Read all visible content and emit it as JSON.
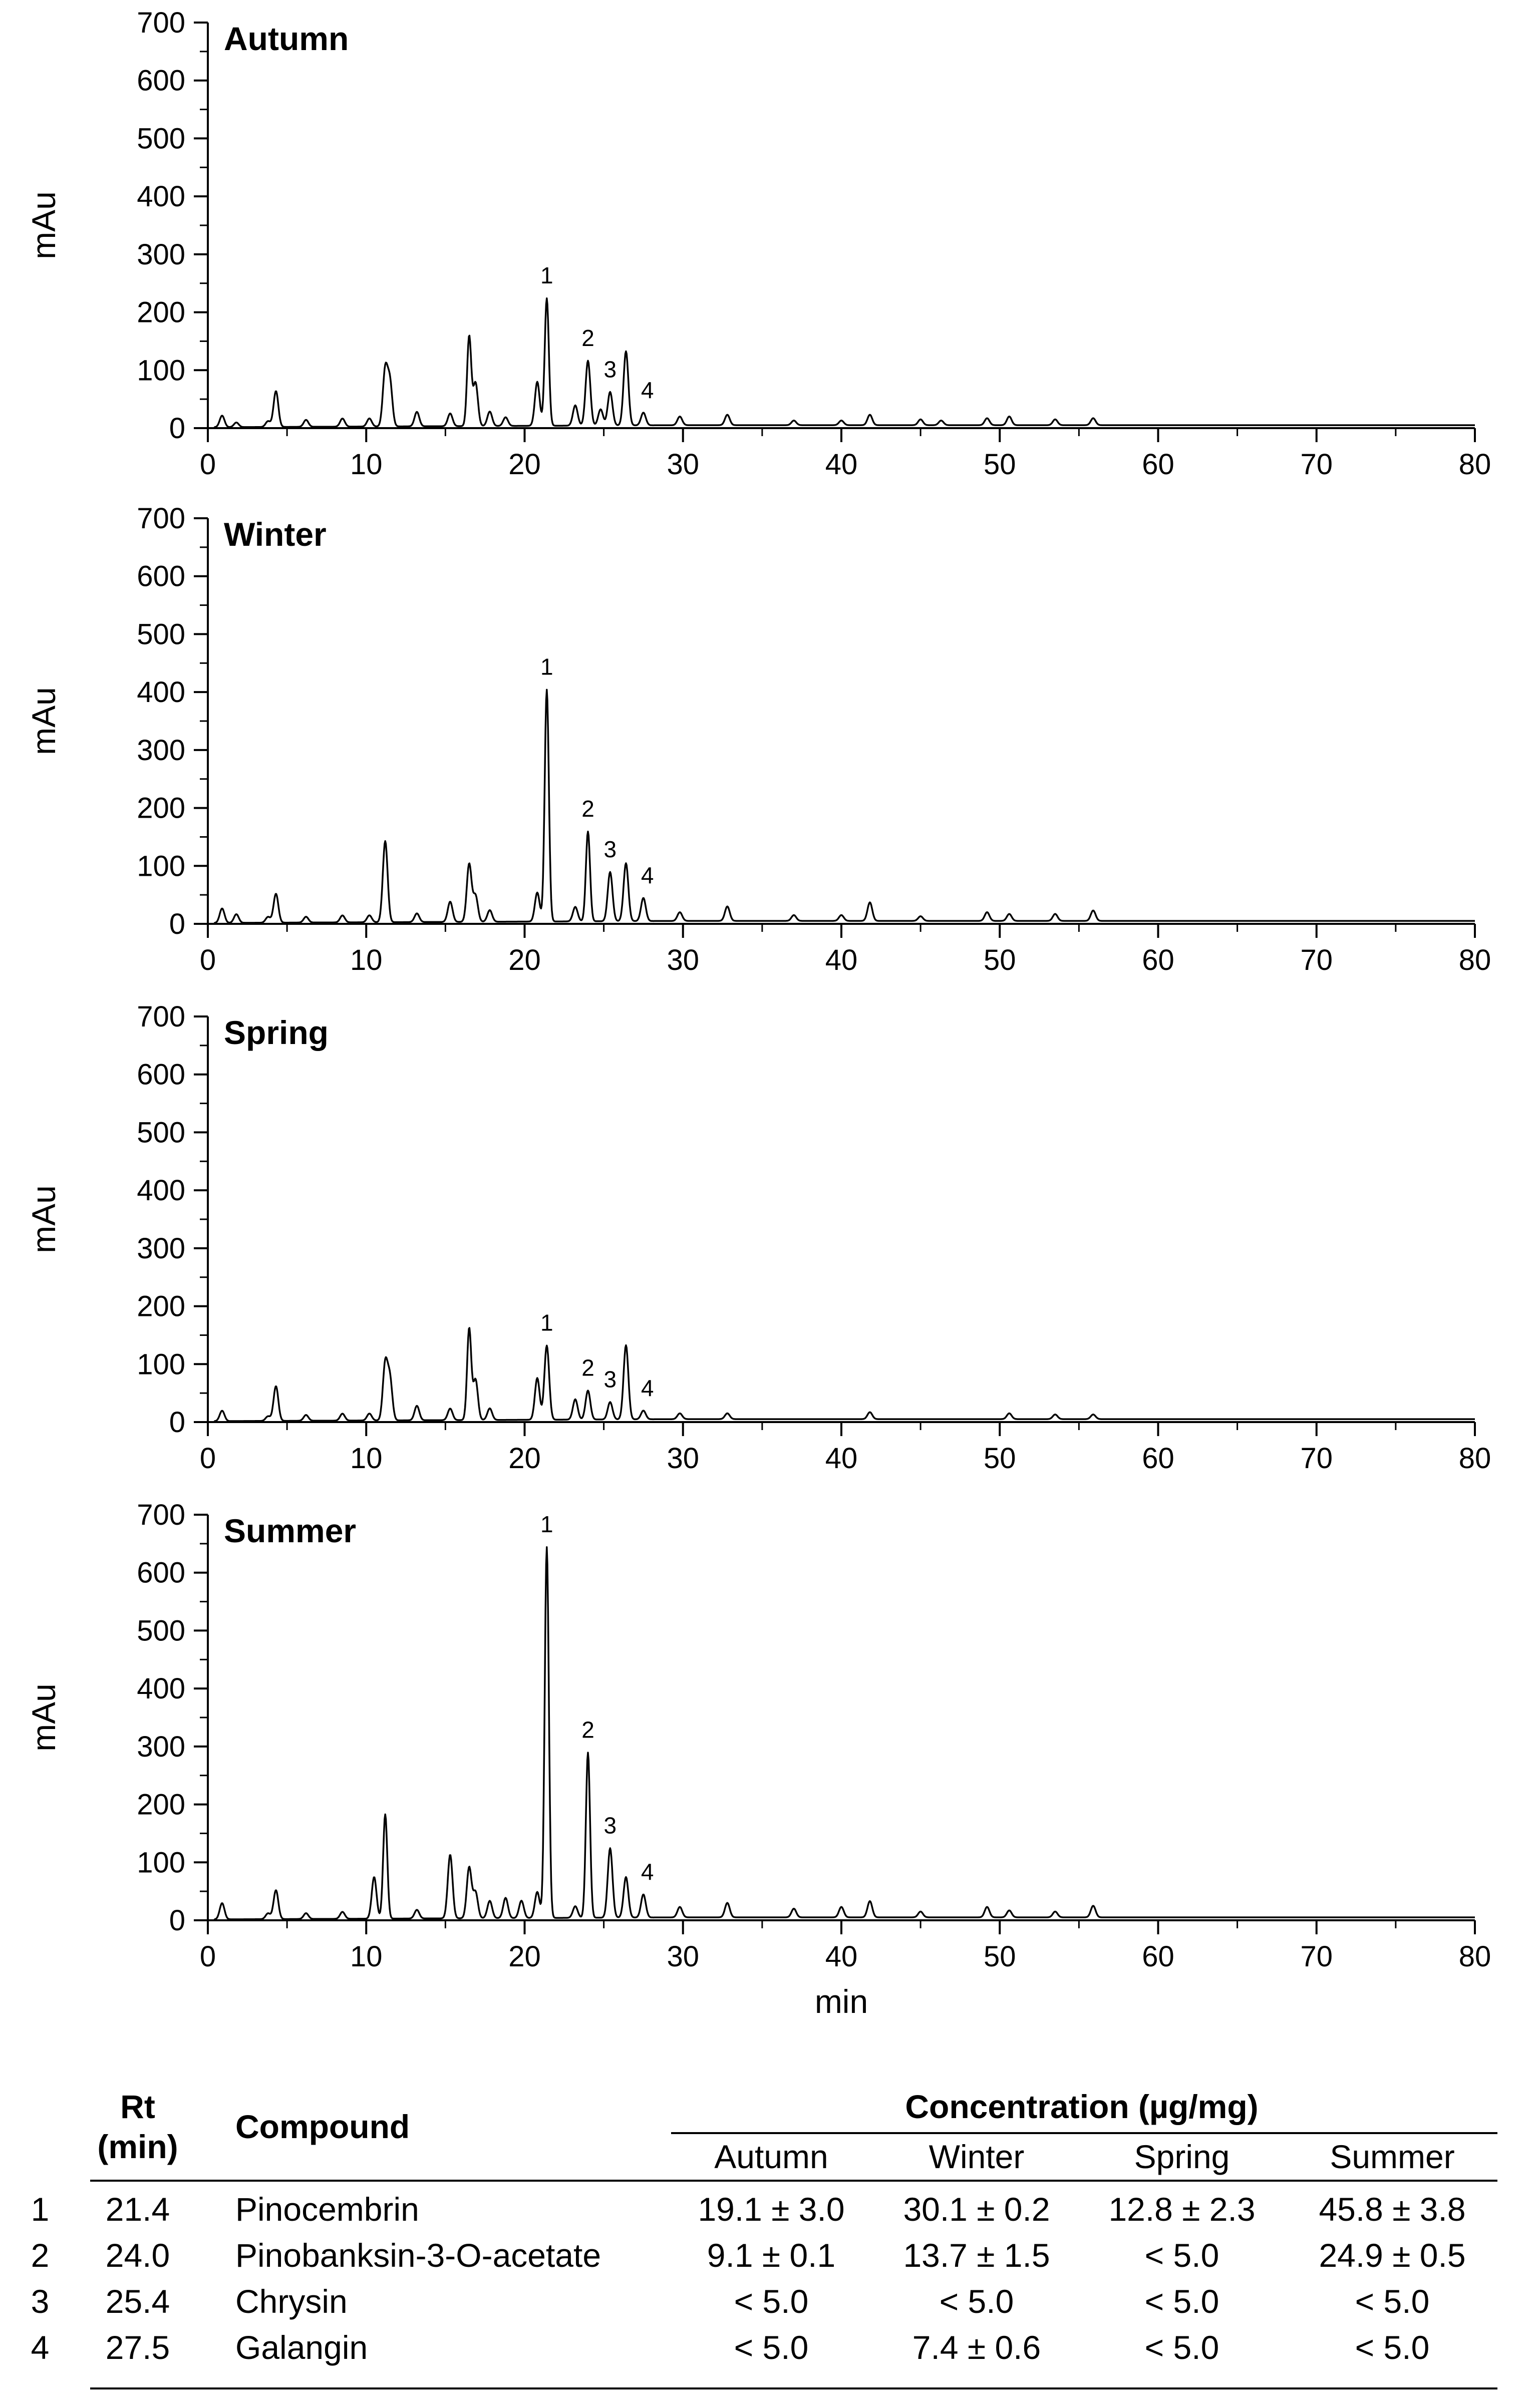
{
  "chart_data": [
    {
      "type": "line",
      "title": "Autumn",
      "xlabel": "",
      "ylabel": "mAu",
      "xlim": [
        0,
        80
      ],
      "ylim": [
        0,
        700
      ],
      "xticks": [
        "0",
        "10",
        "20",
        "30",
        "40",
        "50",
        "60",
        "70",
        "80"
      ],
      "yticks": [
        "0",
        "100",
        "200",
        "300",
        "400",
        "500",
        "600",
        "700"
      ],
      "peaks": [
        [
          0.9,
          20
        ],
        [
          1.8,
          8
        ],
        [
          3.8,
          10
        ],
        [
          4.3,
          62
        ],
        [
          6.2,
          12
        ],
        [
          8.5,
          14
        ],
        [
          10.2,
          14
        ],
        [
          11.2,
          97
        ],
        [
          11.5,
          75
        ],
        [
          13.2,
          25
        ],
        [
          15.3,
          22
        ],
        [
          16.5,
          155
        ],
        [
          16.9,
          75
        ],
        [
          17.8,
          25
        ],
        [
          18.8,
          15
        ],
        [
          20.8,
          76
        ],
        [
          21.4,
          220
        ],
        [
          23.2,
          35
        ],
        [
          24.0,
          112
        ],
        [
          24.8,
          28
        ],
        [
          25.4,
          58
        ],
        [
          26.4,
          128
        ],
        [
          27.5,
          22
        ],
        [
          29.8,
          15
        ],
        [
          32.8,
          18
        ],
        [
          37.0,
          8
        ],
        [
          40.0,
          8
        ],
        [
          41.8,
          18
        ],
        [
          45.0,
          10
        ],
        [
          46.3,
          8
        ],
        [
          49.2,
          12
        ],
        [
          50.6,
          15
        ],
        [
          53.5,
          10
        ],
        [
          55.9,
          12
        ]
      ],
      "peak_labels": [
        {
          "label": "1",
          "x": 21.4
        },
        {
          "label": "2",
          "x": 24.0
        },
        {
          "label": "3",
          "x": 25.4
        },
        {
          "label": "4",
          "x": 27.5
        }
      ]
    },
    {
      "type": "line",
      "title": "Winter",
      "xlabel": "",
      "ylabel": "mAu",
      "xlim": [
        0,
        80
      ],
      "ylim": [
        0,
        700
      ],
      "xticks": [
        "0",
        "10",
        "20",
        "30",
        "40",
        "50",
        "60",
        "70",
        "80"
      ],
      "yticks": [
        "0",
        "100",
        "200",
        "300",
        "400",
        "500",
        "600",
        "700"
      ],
      "peaks": [
        [
          0.9,
          25
        ],
        [
          1.8,
          15
        ],
        [
          3.8,
          10
        ],
        [
          4.3,
          50
        ],
        [
          6.2,
          10
        ],
        [
          8.5,
          12
        ],
        [
          10.2,
          12
        ],
        [
          11.2,
          140
        ],
        [
          13.2,
          15
        ],
        [
          15.3,
          35
        ],
        [
          16.5,
          100
        ],
        [
          16.9,
          45
        ],
        [
          17.8,
          20
        ],
        [
          20.8,
          50
        ],
        [
          21.4,
          400
        ],
        [
          23.2,
          25
        ],
        [
          24.0,
          155
        ],
        [
          25.4,
          85
        ],
        [
          26.4,
          100
        ],
        [
          27.5,
          40
        ],
        [
          29.8,
          15
        ],
        [
          32.8,
          25
        ],
        [
          37.0,
          10
        ],
        [
          40.0,
          10
        ],
        [
          41.8,
          32
        ],
        [
          45.0,
          8
        ],
        [
          49.2,
          15
        ],
        [
          50.6,
          12
        ],
        [
          53.5,
          12
        ],
        [
          55.9,
          18
        ]
      ],
      "peak_labels": [
        {
          "label": "1",
          "x": 21.4
        },
        {
          "label": "2",
          "x": 24.0
        },
        {
          "label": "3",
          "x": 25.4
        },
        {
          "label": "4",
          "x": 27.5
        }
      ]
    },
    {
      "type": "line",
      "title": "Spring",
      "xlabel": "",
      "ylabel": "mAu",
      "xlim": [
        0,
        80
      ],
      "ylim": [
        0,
        700
      ],
      "xticks": [
        "0",
        "10",
        "20",
        "30",
        "40",
        "50",
        "60",
        "70",
        "80"
      ],
      "yticks": [
        "0",
        "100",
        "200",
        "300",
        "400",
        "500",
        "600",
        "700"
      ],
      "peaks": [
        [
          0.9,
          18
        ],
        [
          3.8,
          8
        ],
        [
          4.3,
          60
        ],
        [
          6.2,
          10
        ],
        [
          8.5,
          12
        ],
        [
          10.2,
          12
        ],
        [
          11.2,
          97
        ],
        [
          11.5,
          70
        ],
        [
          13.2,
          25
        ],
        [
          15.3,
          20
        ],
        [
          16.5,
          158
        ],
        [
          16.9,
          70
        ],
        [
          17.8,
          20
        ],
        [
          20.8,
          72
        ],
        [
          21.4,
          128
        ],
        [
          23.2,
          35
        ],
        [
          24.0,
          50
        ],
        [
          25.4,
          30
        ],
        [
          26.4,
          128
        ],
        [
          27.5,
          15
        ],
        [
          29.8,
          10
        ],
        [
          32.8,
          10
        ],
        [
          41.8,
          12
        ],
        [
          50.6,
          10
        ],
        [
          53.5,
          8
        ],
        [
          55.9,
          8
        ]
      ],
      "peak_labels": [
        {
          "label": "1",
          "x": 21.4
        },
        {
          "label": "2",
          "x": 24.0
        },
        {
          "label": "3",
          "x": 25.4
        },
        {
          "label": "4",
          "x": 27.5
        }
      ]
    },
    {
      "type": "line",
      "title": "Summer",
      "xlabel": "min",
      "ylabel": "mAu",
      "xlim": [
        0,
        80
      ],
      "ylim": [
        0,
        700
      ],
      "xticks": [
        "0",
        "10",
        "20",
        "30",
        "40",
        "50",
        "60",
        "70",
        "80"
      ],
      "yticks": [
        "0",
        "100",
        "200",
        "300",
        "400",
        "500",
        "600",
        "700"
      ],
      "peaks": [
        [
          0.9,
          28
        ],
        [
          3.8,
          10
        ],
        [
          4.3,
          50
        ],
        [
          6.2,
          10
        ],
        [
          8.5,
          12
        ],
        [
          10.5,
          72
        ],
        [
          11.2,
          180
        ],
        [
          13.2,
          15
        ],
        [
          15.3,
          110
        ],
        [
          16.5,
          88
        ],
        [
          16.9,
          45
        ],
        [
          17.8,
          30
        ],
        [
          18.8,
          35
        ],
        [
          19.8,
          30
        ],
        [
          20.8,
          45
        ],
        [
          21.4,
          640
        ],
        [
          23.2,
          20
        ],
        [
          24.0,
          285
        ],
        [
          25.4,
          120
        ],
        [
          26.4,
          70
        ],
        [
          27.5,
          40
        ],
        [
          29.8,
          18
        ],
        [
          32.8,
          25
        ],
        [
          37.0,
          15
        ],
        [
          40.0,
          18
        ],
        [
          41.8,
          28
        ],
        [
          45.0,
          10
        ],
        [
          49.2,
          18
        ],
        [
          50.6,
          12
        ],
        [
          53.5,
          10
        ],
        [
          55.9,
          20
        ]
      ],
      "peak_labels": [
        {
          "label": "1",
          "x": 21.4
        },
        {
          "label": "2",
          "x": 24.0
        },
        {
          "label": "3",
          "x": 25.4
        },
        {
          "label": "4",
          "x": 27.5
        }
      ]
    },
    {
      "type": "table",
      "headers": {
        "rt": "Rt",
        "rt_unit": "(min)",
        "compound": "Compound",
        "concentration": "Concentration (µg/mg)",
        "seasons": [
          "Autumn",
          "Winter",
          "Spring",
          "Summer"
        ]
      },
      "rows": [
        {
          "num": "1",
          "rt": "21.4",
          "compound": "Pinocembrin",
          "values": [
            "19.1 ± 3.0",
            "30.1 ± 0.2",
            "12.8 ± 2.3",
            "45.8 ± 3.8"
          ]
        },
        {
          "num": "2",
          "rt": "24.0",
          "compound": "Pinobanksin-3-O-acetate",
          "values": [
            "9.1 ± 0.1",
            "13.7 ± 1.5",
            "< 5.0",
            "24.9 ± 0.5"
          ]
        },
        {
          "num": "3",
          "rt": "25.4",
          "compound": "Chrysin",
          "values": [
            "< 5.0",
            "< 5.0",
            "< 5.0",
            "< 5.0"
          ]
        },
        {
          "num": "4",
          "rt": "27.5",
          "compound": "Galangin",
          "values": [
            "< 5.0",
            "7.4 ± 0.6",
            "< 5.0",
            "< 5.0"
          ]
        }
      ]
    }
  ]
}
